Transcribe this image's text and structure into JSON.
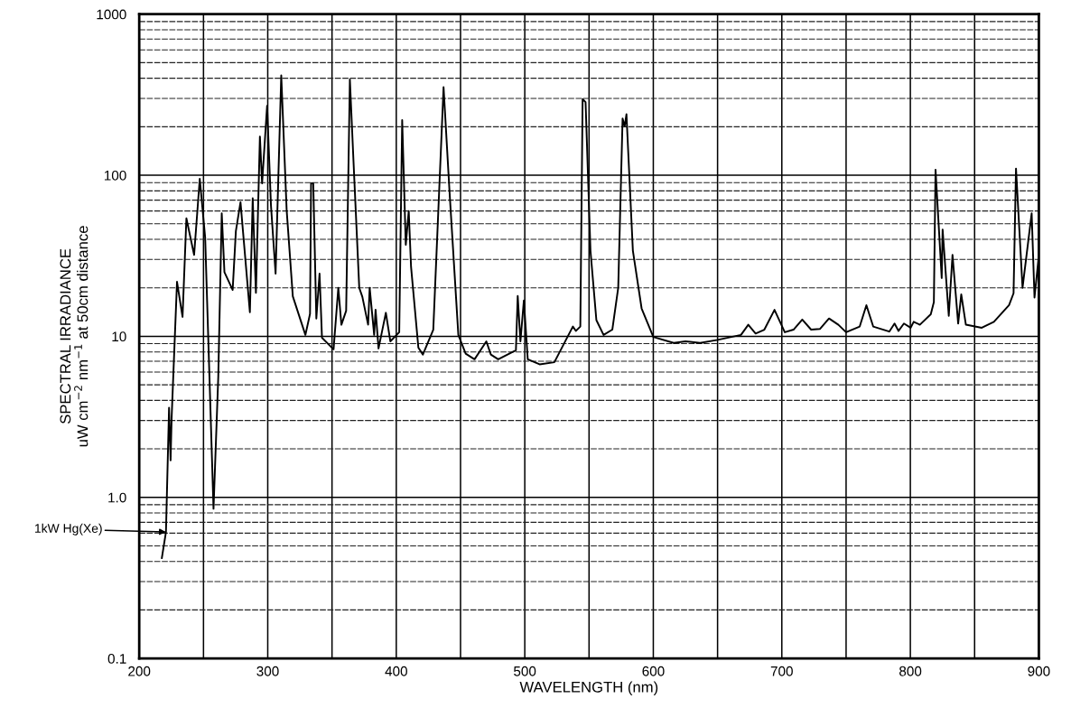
{
  "chart_data": {
    "type": "line",
    "xlabel": "WAVELENGTH (nm)",
    "ylabel": "SPECTRAL IRRADIANCE\nuW cm$^{−2}$ nm$^{−1}$ at 50cm distance",
    "log": "y",
    "grid": true,
    "marker": "none",
    "line_style": "solid",
    "xlim": [
      200,
      900
    ],
    "ylim": [
      0.1,
      1000
    ],
    "xticks": [
      200,
      {
        "value": 250,
        "label": null
      },
      300,
      {
        "value": 350,
        "label": null
      },
      400,
      {
        "value": 450,
        "label": null
      },
      500,
      {
        "value": 550,
        "label": null
      },
      600,
      {
        "value": 650,
        "label": null
      },
      700,
      {
        "value": 750,
        "label": null
      },
      800,
      {
        "value": 850,
        "label": null
      },
      900
    ],
    "yticks": [
      {
        "value": 0.1,
        "label": "0.1"
      },
      {
        "value": 1,
        "label": "1.0"
      },
      10,
      100,
      1000
    ],
    "series": [
      {
        "name": "1kW Hg(Xe)",
        "color": "#000000",
        "x": [
          217.6,
          220.8,
          223.2,
          224.4,
          225.2,
          229.4,
          233.7,
          236.7,
          242.7,
          247.1,
          251.3,
          257.8,
          261.5,
          264.2,
          266.3,
          272.7,
          275.2,
          278.8,
          286.1,
          288.3,
          290.8,
          293.9,
          295.6,
          299.5,
          302.5,
          306.1,
          310.5,
          314.7,
          319.5,
          329.3,
          332.9,
          333.7,
          335.4,
          337.8,
          340.3,
          342.2,
          351.2,
          354.9,
          357.3,
          361.0,
          363.9,
          366.7,
          371.2,
          373.6,
          378.1,
          379.3,
          382.8,
          383.9,
          386.2,
          391.9,
          395.4,
          402.3,
          404.6,
          407.4,
          409.7,
          411.5,
          417.2,
          420.7,
          428.8,
          436.8,
          441.4,
          448.3,
          454.0,
          460.9,
          470.1,
          473.6,
          479.3,
          493.1,
          494.5,
          496.6,
          499.3,
          502.3,
          511.5,
          523.0,
          537.4,
          539.8,
          543.2,
          545.0,
          547.3,
          551.1,
          555.7,
          561.3,
          568.1,
          572.7,
          576.1,
          577.7,
          579.1,
          584.1,
          590.9,
          600.0,
          615.9,
          625.0,
          636.4,
          650.0,
          668.2,
          673.9,
          679.6,
          686.4,
          694.3,
          702.3,
          709.1,
          715.9,
          722.8,
          729.6,
          736.7,
          744.0,
          750.0,
          760.6,
          765.8,
          771.1,
          783.6,
          787.7,
          790.8,
          795.0,
          800.2,
          802.6,
          807.4,
          815.9,
          818.3,
          819.6,
          824.4,
          825.1,
          829.9,
          832.8,
          837.2,
          839.6,
          843.2,
          855.6,
          865.0,
          876.8,
          880.3,
          882.2,
          887.3,
          894.4,
          896.6,
          900.0
        ],
        "values": [
          0.42,
          0.61,
          3.6,
          1.7,
          3.1,
          21.8,
          13.2,
          54,
          32,
          95,
          41,
          0.85,
          5.6,
          58,
          25,
          19.4,
          45,
          68,
          14.1,
          72,
          18.6,
          174,
          89,
          270,
          65,
          24.5,
          417,
          61,
          17.7,
          10.2,
          13.8,
          89,
          89,
          12.9,
          24.5,
          9.8,
          8.3,
          20,
          11.8,
          14.4,
          393,
          123,
          20,
          17.6,
          11.8,
          20,
          10.2,
          14.6,
          8.4,
          14,
          9.3,
          10.6,
          220,
          37,
          60,
          27,
          8.5,
          7.7,
          11,
          352,
          80,
          10.2,
          7.8,
          7.2,
          9.3,
          7.7,
          7.2,
          8.2,
          17.8,
          9.3,
          16.7,
          7.2,
          6.7,
          6.9,
          11.5,
          10.8,
          11.5,
          297,
          284,
          34,
          12.6,
          10.2,
          11,
          20,
          225,
          201,
          239,
          34,
          14.9,
          9.9,
          9.1,
          9.3,
          9.1,
          9.5,
          10.2,
          11.8,
          10.4,
          11,
          14.6,
          10.6,
          11,
          12.7,
          11,
          11.1,
          12.9,
          11.8,
          10.6,
          11.5,
          15.6,
          11.5,
          10.7,
          12,
          10.8,
          12,
          11.3,
          12.3,
          11.8,
          13.7,
          16.3,
          108,
          23,
          46,
          13.4,
          32,
          12,
          18.2,
          11.8,
          11.3,
          12.3,
          15.6,
          18.5,
          110,
          20,
          58,
          17.4,
          32
        ]
      }
    ]
  }
}
